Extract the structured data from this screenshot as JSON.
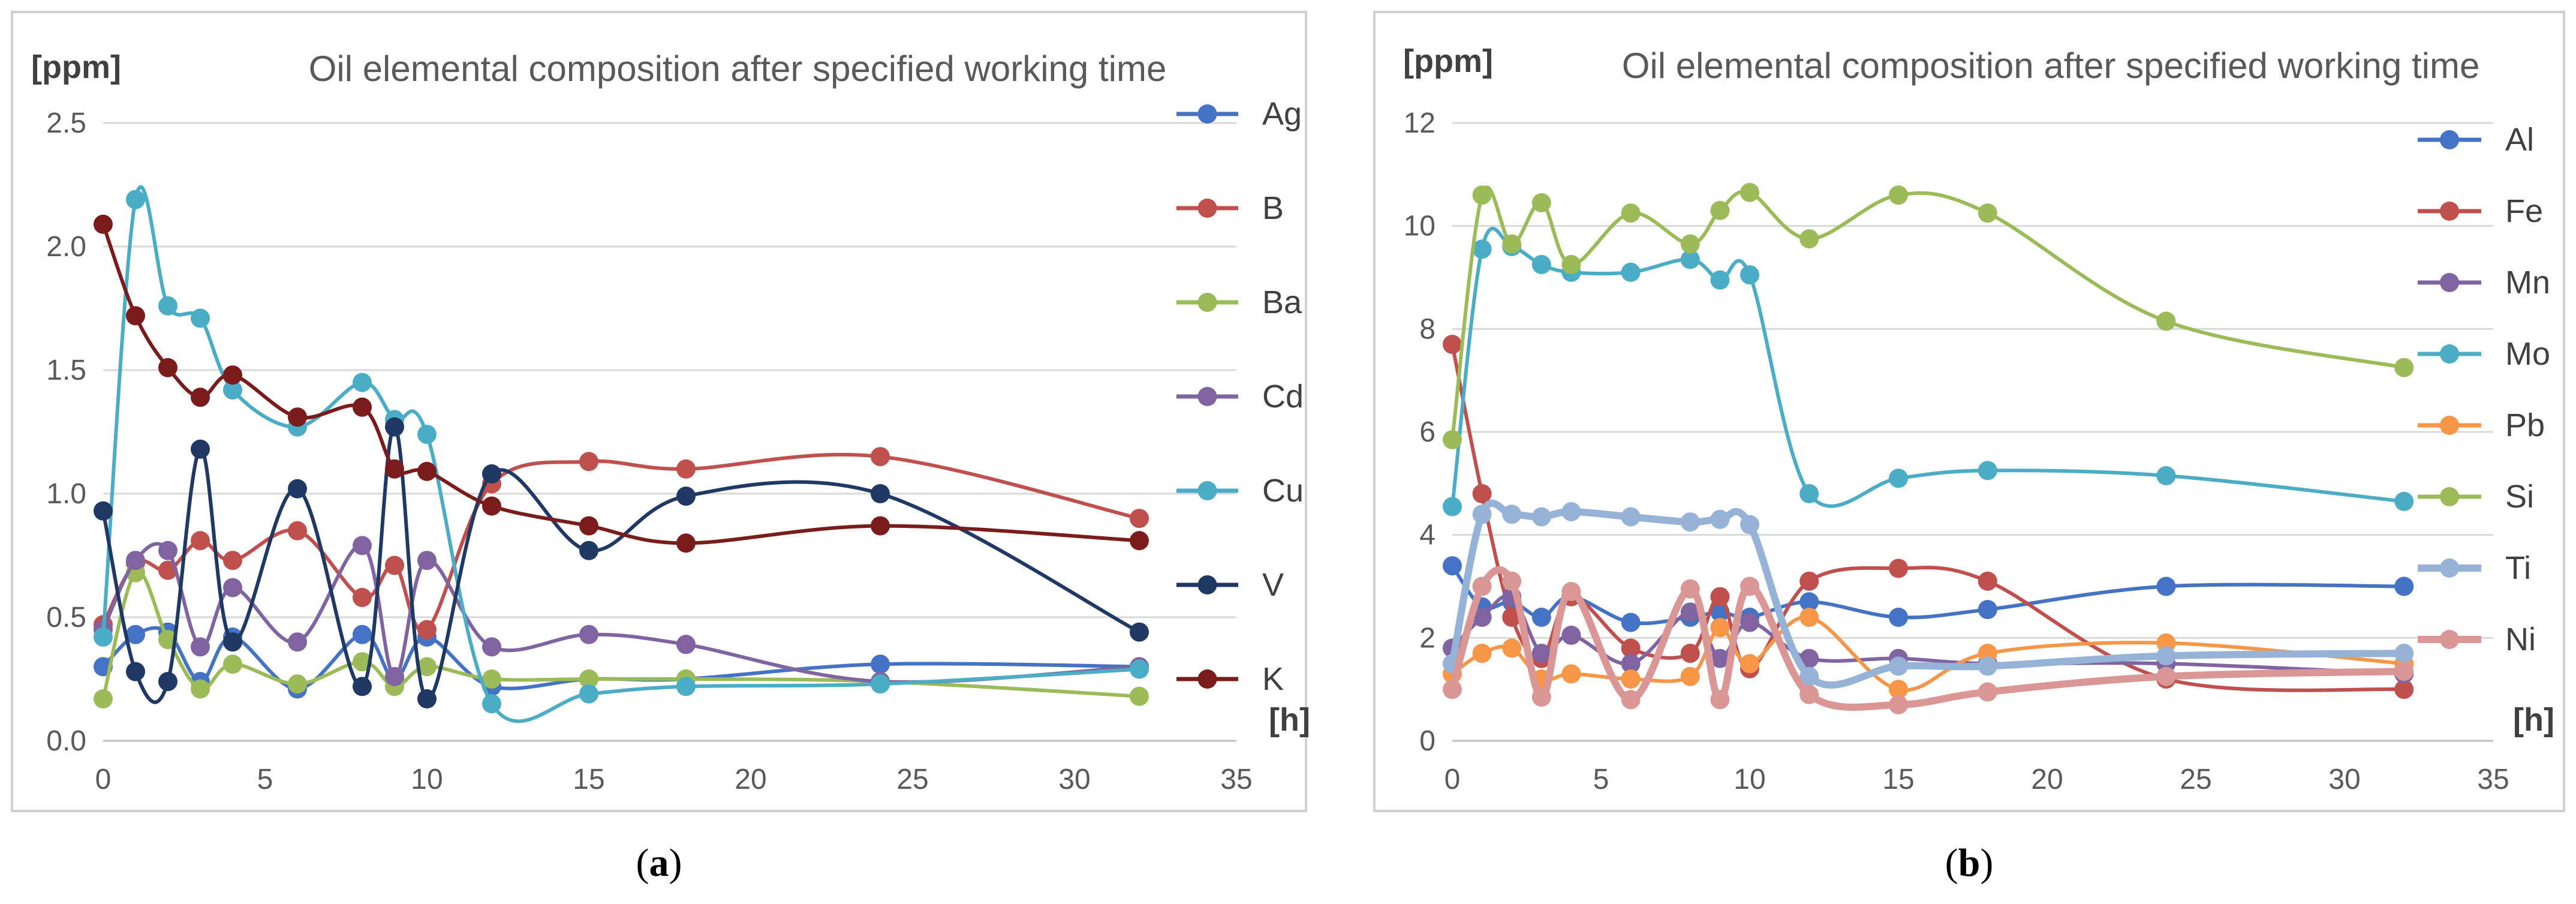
{
  "chart_data": [
    {
      "type": "line",
      "id": "a",
      "title": "Oil elemental composition after specified working time",
      "ylabel": "[ppm]",
      "xlabel": "[h]",
      "caption": {
        "open": "(",
        "letter": "a",
        "close": ")"
      },
      "xlim": [
        0,
        35
      ],
      "ylim": [
        0,
        2.5
      ],
      "xticks": [
        "0",
        "5",
        "10",
        "15",
        "20",
        "25",
        "30",
        "35"
      ],
      "yticks": [
        "0.0",
        "0.5",
        "1.0",
        "1.5",
        "2.0",
        "2.5"
      ],
      "legend_position": "right",
      "series": [
        {
          "name": "Ag",
          "color": "#4472c4",
          "x": [
            0,
            1,
            2,
            3,
            4,
            6,
            8,
            9,
            10,
            12,
            15,
            18,
            24,
            32
          ],
          "values": [
            0.3,
            0.43,
            0.44,
            0.24,
            0.42,
            0.21,
            0.43,
            0.25,
            0.42,
            0.22,
            0.25,
            0.25,
            0.31,
            0.3
          ]
        },
        {
          "name": "B",
          "color": "#c0504d",
          "x": [
            0,
            1,
            2,
            3,
            4,
            6,
            8,
            9,
            10,
            12,
            15,
            18,
            24,
            32
          ],
          "values": [
            0.47,
            0.72,
            0.69,
            0.81,
            0.73,
            0.85,
            0.58,
            0.71,
            0.45,
            1.04,
            1.13,
            1.1,
            1.15,
            0.9
          ]
        },
        {
          "name": "Ba",
          "color": "#9bbb59",
          "x": [
            0,
            1,
            2,
            3,
            4,
            6,
            8,
            9,
            10,
            12,
            15,
            18,
            24,
            32
          ],
          "values": [
            0.17,
            0.68,
            0.41,
            0.21,
            0.31,
            0.23,
            0.32,
            0.22,
            0.3,
            0.25,
            0.25,
            0.25,
            0.24,
            0.18
          ]
        },
        {
          "name": "Cd",
          "color": "#8064a2",
          "x": [
            0,
            1,
            2,
            3,
            4,
            6,
            8,
            9,
            10,
            12,
            15,
            18,
            24,
            32
          ],
          "values": [
            0.45,
            0.73,
            0.77,
            0.38,
            0.62,
            0.4,
            0.79,
            0.26,
            0.73,
            0.38,
            0.43,
            0.39,
            0.24,
            0.3
          ]
        },
        {
          "name": "Cu",
          "color": "#4bacc6",
          "x": [
            0,
            1,
            2,
            3,
            4,
            6,
            8,
            9,
            10,
            12,
            15,
            18,
            24,
            32
          ],
          "values": [
            0.42,
            2.19,
            1.76,
            1.71,
            1.42,
            1.27,
            1.45,
            1.3,
            1.24,
            0.15,
            0.19,
            0.22,
            0.23,
            0.29
          ]
        },
        {
          "name": "V",
          "color": "#1f3864",
          "x": [
            0,
            1,
            2,
            3,
            4,
            6,
            8,
            9,
            10,
            12,
            15,
            18,
            24,
            32
          ],
          "values": [
            0.93,
            0.28,
            0.24,
            1.18,
            0.4,
            1.02,
            0.22,
            1.27,
            0.17,
            1.08,
            0.77,
            0.99,
            1.0,
            0.44
          ]
        },
        {
          "name": "K",
          "color": "#7b1c1c",
          "x": [
            0,
            1,
            2,
            3,
            4,
            6,
            8,
            9,
            10,
            12,
            15,
            18,
            24,
            32
          ],
          "values": [
            2.09,
            1.72,
            1.51,
            1.39,
            1.48,
            1.31,
            1.35,
            1.1,
            1.09,
            0.95,
            0.87,
            0.8,
            0.87,
            0.81
          ]
        }
      ]
    },
    {
      "type": "line",
      "id": "b",
      "title": "Oil elemental composition after specified working time",
      "ylabel": "[ppm]",
      "xlabel": "[h]",
      "caption": {
        "open": "(",
        "letter": "b",
        "close": ")"
      },
      "xlim": [
        0,
        35
      ],
      "ylim": [
        0,
        12
      ],
      "xticks": [
        "0",
        "5",
        "10",
        "15",
        "20",
        "25",
        "30",
        "35"
      ],
      "yticks": [
        "0",
        "2",
        "4",
        "6",
        "8",
        "10",
        "12"
      ],
      "legend_position": "right",
      "series": [
        {
          "name": "Al",
          "color": "#4472c4",
          "x": [
            0,
            1,
            2,
            3,
            4,
            6,
            8,
            9,
            10,
            12,
            15,
            18,
            24,
            32
          ],
          "values": [
            3.4,
            2.6,
            2.7,
            2.4,
            2.8,
            2.3,
            2.4,
            2.5,
            2.4,
            2.7,
            2.4,
            2.55,
            3.0,
            3.0
          ]
        },
        {
          "name": "Fe",
          "color": "#c0504d",
          "x": [
            0,
            1,
            2,
            3,
            4,
            6,
            8,
            9,
            10,
            12,
            15,
            18,
            24,
            32
          ],
          "values": [
            7.7,
            4.8,
            2.4,
            1.6,
            2.8,
            1.8,
            1.7,
            2.8,
            1.4,
            3.1,
            3.35,
            3.1,
            1.2,
            1.0
          ]
        },
        {
          "name": "Mn",
          "color": "#8064a2",
          "x": [
            0,
            1,
            2,
            3,
            4,
            6,
            8,
            9,
            10,
            12,
            15,
            18,
            24,
            32
          ],
          "values": [
            1.8,
            2.4,
            2.8,
            1.7,
            2.05,
            1.5,
            2.5,
            1.6,
            2.3,
            1.6,
            1.6,
            1.5,
            1.5,
            1.3
          ]
        },
        {
          "name": "Mo",
          "color": "#4bacc6",
          "x": [
            0,
            1,
            2,
            3,
            4,
            6,
            8,
            9,
            10,
            12,
            15,
            18,
            24,
            32
          ],
          "values": [
            4.55,
            9.55,
            9.6,
            9.25,
            9.1,
            9.1,
            9.35,
            8.95,
            9.05,
            4.8,
            5.1,
            5.25,
            5.15,
            4.65
          ]
        },
        {
          "name": "Pb",
          "color": "#f79646",
          "x": [
            0,
            1,
            2,
            3,
            4,
            6,
            8,
            9,
            10,
            12,
            15,
            18,
            24,
            32
          ],
          "values": [
            1.3,
            1.7,
            1.8,
            1.2,
            1.3,
            1.2,
            1.25,
            2.2,
            1.5,
            2.4,
            1.0,
            1.7,
            1.9,
            1.5
          ]
        },
        {
          "name": "Si",
          "color": "#9bbb59",
          "x": [
            0,
            1,
            2,
            3,
            4,
            6,
            8,
            9,
            10,
            12,
            15,
            18,
            24,
            32
          ],
          "values": [
            5.85,
            10.6,
            9.65,
            10.45,
            9.25,
            10.25,
            9.65,
            10.3,
            10.65,
            9.75,
            10.6,
            10.25,
            8.15,
            7.25
          ]
        },
        {
          "name": "Ti",
          "color": "#95b3d7",
          "width": 12,
          "x": [
            0,
            1,
            2,
            3,
            4,
            6,
            8,
            9,
            10,
            12,
            15,
            18,
            24,
            32
          ],
          "values": [
            1.5,
            4.4,
            4.4,
            4.35,
            4.45,
            4.35,
            4.25,
            4.3,
            4.2,
            1.25,
            1.45,
            1.45,
            1.65,
            1.7
          ]
        },
        {
          "name": "Ni",
          "color": "#d99694",
          "width": 12,
          "x": [
            0,
            1,
            2,
            3,
            4,
            6,
            8,
            9,
            10,
            12,
            15,
            18,
            24,
            32
          ],
          "values": [
            1.0,
            3.0,
            3.1,
            0.85,
            2.9,
            0.8,
            2.95,
            0.8,
            3.0,
            0.9,
            0.7,
            0.95,
            1.25,
            1.35
          ]
        }
      ]
    }
  ]
}
